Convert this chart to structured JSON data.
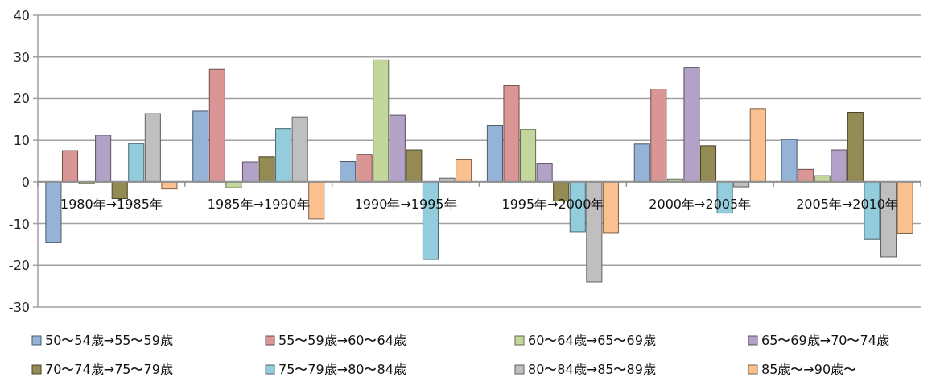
{
  "chart_data": {
    "type": "bar",
    "categories": [
      "1980年→1985年",
      "1985年→1990年",
      "1990年→1995年",
      "1995年→2000年",
      "2000年→2005年",
      "2005年→2010年"
    ],
    "series": [
      {
        "name": "50〜54歳→55〜59歳",
        "color": "#95b3d7",
        "values": [
          -14.6,
          17,
          4.9,
          13.6,
          9.1,
          10.2
        ]
      },
      {
        "name": "55〜59歳→60〜64歳",
        "color": "#d99694",
        "values": [
          7.5,
          27,
          6.6,
          23.1,
          22.3,
          3
        ]
      },
      {
        "name": "60〜64歳→65〜69歳",
        "color": "#c3d69b",
        "values": [
          -0.3,
          -1.4,
          29.3,
          12.6,
          0.7,
          1.5
        ]
      },
      {
        "name": "65〜69歳→70〜74歳",
        "color": "#b3a2c7",
        "values": [
          11.2,
          4.8,
          16,
          4.5,
          27.5,
          7.7
        ]
      },
      {
        "name": "70〜74歳→75〜79歳",
        "color": "#948a54",
        "values": [
          -4,
          6,
          7.7,
          -4.6,
          8.7,
          16.7
        ]
      },
      {
        "name": "75〜79歳→80〜84歳",
        "color": "#93cddd",
        "values": [
          9.2,
          12.8,
          -18.6,
          -12,
          -7.5,
          -13.8
        ]
      },
      {
        "name": "80〜84歳→85〜89歳",
        "color": "#bfbfbf",
        "values": [
          16.4,
          15.6,
          0.9,
          -24,
          -1.2,
          -18
        ]
      },
      {
        "name": "85歳〜→90歳〜",
        "color": "#fac090",
        "values": [
          -1.7,
          -8.9,
          5.3,
          -12.2,
          17.6,
          -12.3
        ]
      }
    ],
    "ylim": [
      -30,
      40
    ],
    "yticks": [
      -30,
      -20,
      -10,
      0,
      10,
      20,
      30,
      40
    ],
    "grid": "y",
    "legend": "bottom"
  }
}
